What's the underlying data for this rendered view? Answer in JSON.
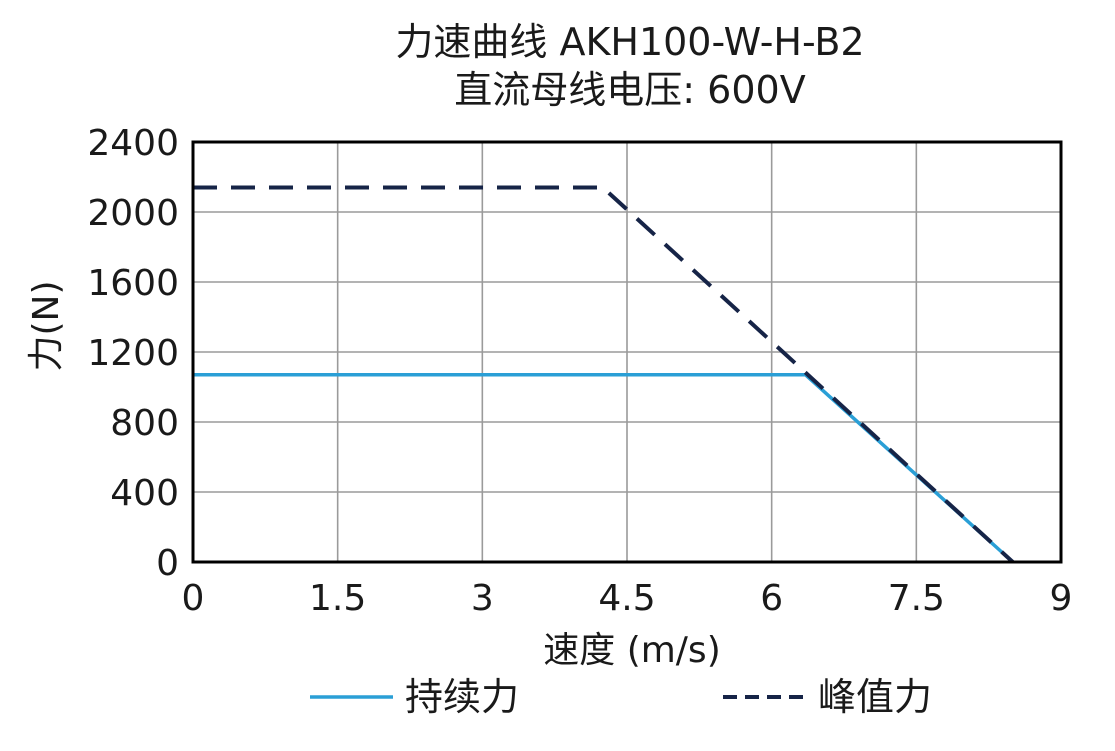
{
  "chart_data": {
    "type": "line",
    "title": "力速曲线 AKH100-W-H-B2",
    "subtitle": "直流母线电压: 600V",
    "xlabel": "速度 (m/s)",
    "ylabel": "力(N)",
    "xlim": [
      0,
      9
    ],
    "ylim": [
      0,
      2400
    ],
    "xticks": [
      0,
      1.5,
      3,
      4.5,
      6,
      7.5,
      9
    ],
    "xtick_labels": [
      "0",
      "1.5",
      "3",
      "4.5",
      "6",
      "7.5",
      "9"
    ],
    "yticks": [
      0,
      400,
      800,
      1200,
      1600,
      2000,
      2400
    ],
    "ytick_labels": [
      "0",
      "400",
      "800",
      "1200",
      "1600",
      "2000",
      "2400"
    ],
    "grid": true,
    "legend_position": "bottom",
    "series": [
      {
        "name": "持续力",
        "style": "solid",
        "color": "#2a9fd6",
        "x": [
          0,
          6.35,
          8.5
        ],
        "y": [
          1070,
          1070,
          0
        ]
      },
      {
        "name": "峰值力",
        "style": "dashed",
        "color": "#162447",
        "x": [
          0,
          4.25,
          8.5
        ],
        "y": [
          2140,
          2140,
          0
        ]
      }
    ]
  }
}
